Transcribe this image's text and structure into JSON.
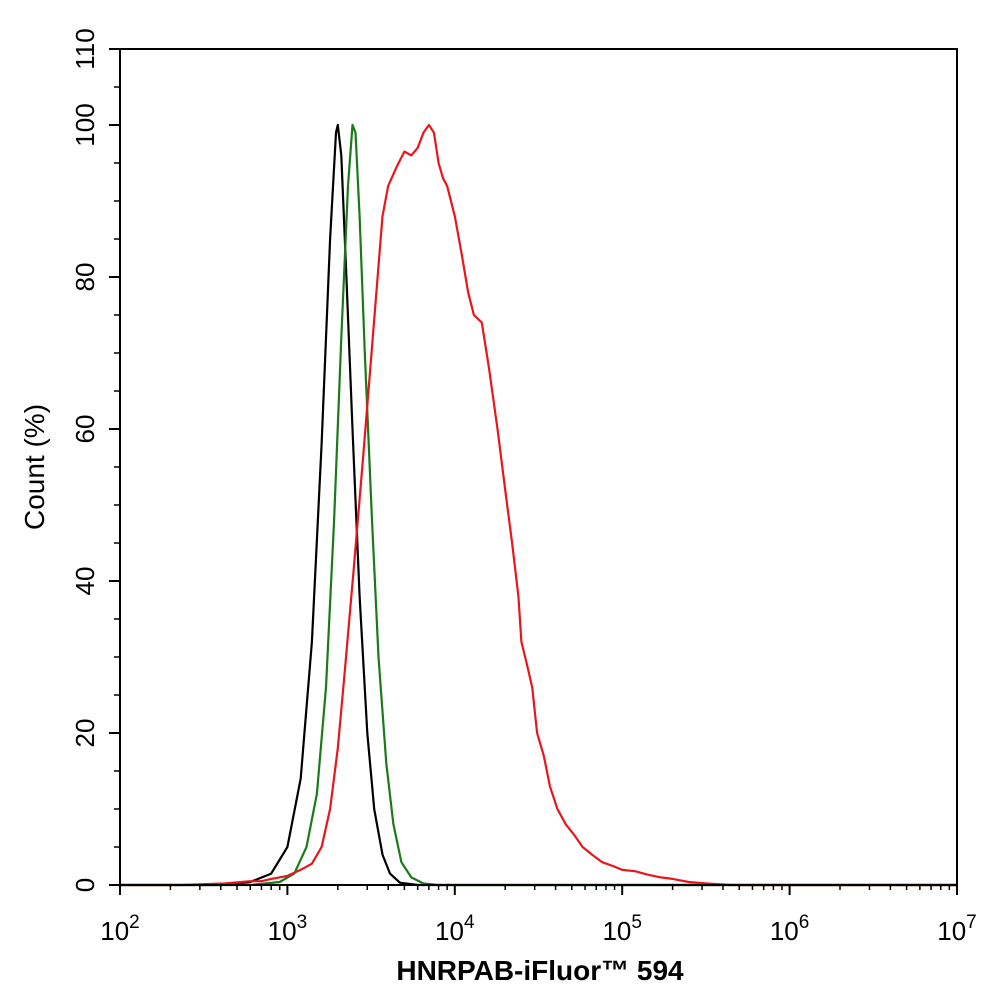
{
  "chart_data": {
    "type": "line",
    "title": "",
    "xlabel": "HNRPAB-iFluor™ 594",
    "ylabel": "Count  (%)",
    "x_scale": "log",
    "xlim": [
      100,
      10000000
    ],
    "ylim": [
      0,
      110
    ],
    "grid": false,
    "legend": "none",
    "x_ticks": [
      {
        "base": "10",
        "exp": "2",
        "value": 100
      },
      {
        "base": "10",
        "exp": "3",
        "value": 1000
      },
      {
        "base": "10",
        "exp": "4",
        "value": 10000
      },
      {
        "base": "10",
        "exp": "5",
        "value": 100000
      },
      {
        "base": "10",
        "exp": "6",
        "value": 1000000
      },
      {
        "base": "10",
        "exp": "7",
        "value": 10000000
      }
    ],
    "y_ticks": [
      "0",
      "20",
      "40",
      "60",
      "80",
      "100",
      "110"
    ],
    "y_tick_values": [
      0,
      20,
      40,
      60,
      80,
      100,
      110
    ],
    "series": [
      {
        "color": "#000000",
        "points": [
          [
            100,
            0
          ],
          [
            400,
            0
          ],
          [
            600,
            0.4
          ],
          [
            800,
            1.5
          ],
          [
            1000,
            5
          ],
          [
            1200,
            14
          ],
          [
            1400,
            32
          ],
          [
            1600,
            58
          ],
          [
            1800,
            85
          ],
          [
            1950,
            99
          ],
          [
            2000,
            100
          ],
          [
            2100,
            96
          ],
          [
            2250,
            80
          ],
          [
            2450,
            60
          ],
          [
            2700,
            38
          ],
          [
            3000,
            20
          ],
          [
            3300,
            10
          ],
          [
            3700,
            4
          ],
          [
            4100,
            1.5
          ],
          [
            4700,
            0.3
          ],
          [
            6000,
            0
          ],
          [
            10000000,
            0
          ]
        ]
      },
      {
        "color": "#1a7a1a",
        "points": [
          [
            100,
            0
          ],
          [
            600,
            0
          ],
          [
            900,
            0.4
          ],
          [
            1100,
            1.5
          ],
          [
            1300,
            5
          ],
          [
            1500,
            12
          ],
          [
            1700,
            26
          ],
          [
            1900,
            48
          ],
          [
            2100,
            72
          ],
          [
            2300,
            92
          ],
          [
            2450,
            100
          ],
          [
            2550,
            99
          ],
          [
            2700,
            88
          ],
          [
            2900,
            70
          ],
          [
            3200,
            48
          ],
          [
            3500,
            30
          ],
          [
            3900,
            16
          ],
          [
            4300,
            8
          ],
          [
            4800,
            3
          ],
          [
            5500,
            1
          ],
          [
            6500,
            0.2
          ],
          [
            8000,
            0
          ],
          [
            10000000,
            0
          ]
        ]
      },
      {
        "color": "#e8161c",
        "points": [
          [
            100,
            0
          ],
          [
            230,
            0
          ],
          [
            420,
            0.2
          ],
          [
            600,
            0.5
          ],
          [
            700,
            0.5
          ],
          [
            800,
            0.8
          ],
          [
            1000,
            1.2
          ],
          [
            1200,
            2
          ],
          [
            1400,
            2.8
          ],
          [
            1600,
            5
          ],
          [
            1800,
            10
          ],
          [
            2000,
            18
          ],
          [
            2200,
            28
          ],
          [
            2500,
            42
          ],
          [
            2800,
            55
          ],
          [
            3100,
            67
          ],
          [
            3400,
            78
          ],
          [
            3700,
            88
          ],
          [
            4000,
            92
          ],
          [
            4500,
            94.5
          ],
          [
            5000,
            96.5
          ],
          [
            5500,
            96
          ],
          [
            6000,
            97
          ],
          [
            6500,
            99
          ],
          [
            7000,
            100
          ],
          [
            7500,
            99
          ],
          [
            8000,
            95
          ],
          [
            8500,
            93
          ],
          [
            9000,
            92
          ],
          [
            10000,
            88
          ],
          [
            11000,
            83
          ],
          [
            12000,
            78
          ],
          [
            13000,
            75
          ],
          [
            14500,
            74
          ],
          [
            16000,
            68
          ],
          [
            18000,
            60
          ],
          [
            20000,
            52
          ],
          [
            22000,
            45
          ],
          [
            24000,
            38
          ],
          [
            25000,
            32
          ],
          [
            27000,
            29
          ],
          [
            29000,
            26
          ],
          [
            31000,
            20
          ],
          [
            34000,
            17
          ],
          [
            37000,
            13
          ],
          [
            41000,
            10
          ],
          [
            46000,
            8
          ],
          [
            52000,
            6.5
          ],
          [
            58000,
            5
          ],
          [
            66000,
            4
          ],
          [
            76000,
            3
          ],
          [
            88000,
            2.5
          ],
          [
            100000,
            2
          ],
          [
            120000,
            1.8
          ],
          [
            140000,
            1.4
          ],
          [
            170000,
            1
          ],
          [
            200000,
            0.8
          ],
          [
            250000,
            0.4
          ],
          [
            320000,
            0.2
          ],
          [
            450000,
            0
          ],
          [
            10000000,
            0
          ]
        ]
      }
    ]
  }
}
